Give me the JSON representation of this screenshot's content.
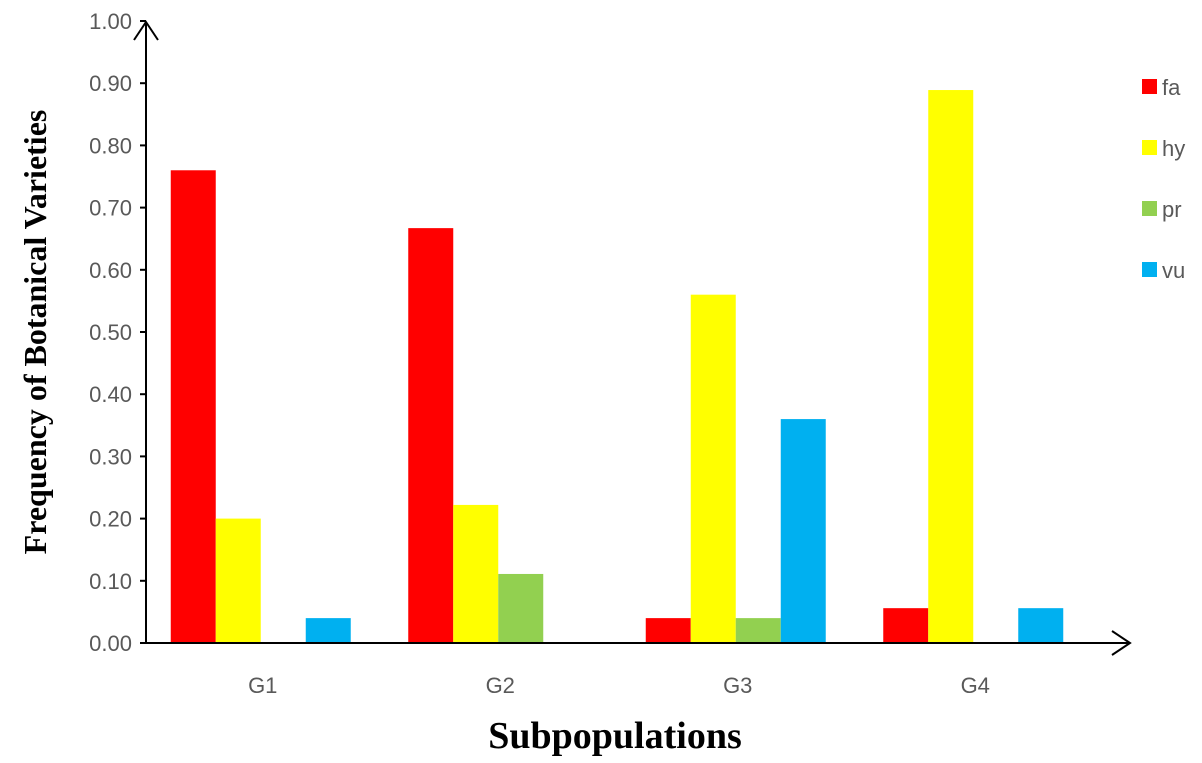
{
  "chart_data": {
    "type": "bar",
    "title": "",
    "xlabel": "Subpopulations",
    "ylabel": "Frequency of Botanical Varieties",
    "ylim": [
      0,
      1.0
    ],
    "ytick_step": 0.1,
    "ytick_decimals": 2,
    "grid": false,
    "legend_position": "right",
    "categories": [
      "G1",
      "G2",
      "G3",
      "G4"
    ],
    "series": [
      {
        "name": "fa",
        "color": "#FF0000",
        "values": [
          0.76,
          0.667,
          0.04,
          0.056
        ]
      },
      {
        "name": "hy",
        "color": "#FFFF00",
        "values": [
          0.2,
          0.222,
          0.56,
          0.889
        ]
      },
      {
        "name": "pr",
        "color": "#92D050",
        "values": [
          0.0,
          0.111,
          0.04,
          0.0
        ]
      },
      {
        "name": "vu",
        "color": "#00B0F0",
        "values": [
          0.04,
          0.0,
          0.36,
          0.056
        ]
      }
    ]
  }
}
